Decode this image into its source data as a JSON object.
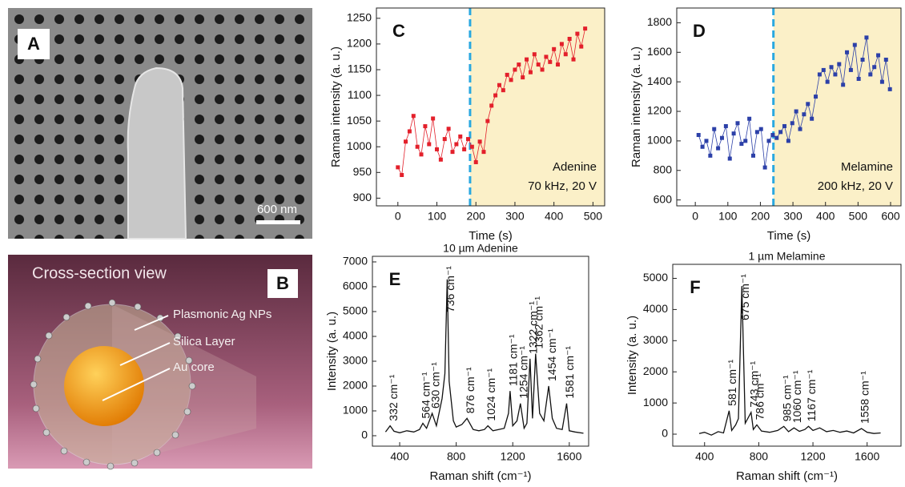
{
  "panels": {
    "A": {
      "label": "A",
      "scale_bar": "600 nm"
    },
    "B": {
      "label": "B",
      "title": "Cross-section view",
      "labels": [
        "Plasmonic Ag NPs",
        "Silica Layer",
        "Au core"
      ]
    }
  },
  "chart_data": [
    {
      "type": "line",
      "panel": "C",
      "markers": true,
      "xlabel": "Time (s)",
      "ylabel": "Raman intensity (a. u.)",
      "annotation_lines": [
        "Adenine",
        "70 kHz, 20 V"
      ],
      "vline": 185,
      "shade_color": "#fbf0c8",
      "vline_color": "#29a8e0",
      "x": [
        0,
        10,
        20,
        30,
        40,
        50,
        60,
        70,
        80,
        90,
        100,
        110,
        120,
        130,
        140,
        150,
        160,
        170,
        180,
        190,
        200,
        210,
        220,
        230,
        240,
        250,
        260,
        270,
        280,
        290,
        300,
        310,
        320,
        330,
        340,
        350,
        360,
        370,
        380,
        390,
        400,
        410,
        420,
        430,
        440,
        450,
        460,
        470,
        480
      ],
      "series": [
        {
          "color": "#e3202b",
          "values": [
            960,
            945,
            1010,
            1030,
            1060,
            1000,
            985,
            1040,
            1005,
            1055,
            995,
            975,
            1015,
            1035,
            990,
            1005,
            1020,
            995,
            1015,
            1000,
            970,
            1010,
            990,
            1050,
            1080,
            1100,
            1120,
            1110,
            1140,
            1130,
            1150,
            1160,
            1135,
            1170,
            1145,
            1180,
            1160,
            1150,
            1175,
            1165,
            1190,
            1160,
            1200,
            1180,
            1210,
            1170,
            1220,
            1195,
            1230
          ]
        }
      ],
      "xlim": [
        -55,
        530
      ],
      "ylim": [
        885,
        1270
      ],
      "xticks": [
        0,
        100,
        200,
        300,
        400,
        500
      ],
      "yticks": [
        900,
        950,
        1000,
        1050,
        1100,
        1150,
        1200,
        1250
      ]
    },
    {
      "type": "line",
      "panel": "D",
      "markers": true,
      "xlabel": "Time (s)",
      "ylabel": "Raman intensity (a. u.)",
      "annotation_lines": [
        "Melamine",
        "200 kHz, 20 V"
      ],
      "vline": 240,
      "shade_color": "#fbf0c8",
      "vline_color": "#29a8e0",
      "x": [
        10,
        22,
        34,
        46,
        58,
        70,
        82,
        94,
        106,
        118,
        130,
        142,
        154,
        166,
        178,
        190,
        202,
        214,
        226,
        238,
        250,
        262,
        274,
        286,
        298,
        310,
        322,
        334,
        346,
        358,
        370,
        382,
        394,
        406,
        418,
        430,
        442,
        454,
        466,
        478,
        490,
        502,
        514,
        526,
        538,
        550,
        562,
        574,
        586,
        598
      ],
      "series": [
        {
          "color": "#2c40a8",
          "values": [
            1040,
            960,
            1000,
            900,
            1080,
            950,
            1020,
            1100,
            880,
            1050,
            1120,
            980,
            1000,
            1150,
            900,
            1060,
            1080,
            820,
            1000,
            1040,
            1020,
            1060,
            1100,
            1000,
            1120,
            1200,
            1080,
            1180,
            1250,
            1150,
            1300,
            1450,
            1480,
            1400,
            1500,
            1450,
            1520,
            1380,
            1600,
            1480,
            1650,
            1420,
            1550,
            1700,
            1450,
            1500,
            1580,
            1400,
            1550,
            1350
          ]
        }
      ],
      "xlim": [
        -57,
        632
      ],
      "ylim": [
        560,
        1900
      ],
      "xticks": [
        0,
        100,
        200,
        300,
        400,
        500,
        600
      ],
      "yticks": [
        600,
        800,
        1000,
        1200,
        1400,
        1600,
        1800
      ]
    },
    {
      "type": "line",
      "panel": "E",
      "markers": false,
      "title": "10 µm Adenine",
      "xlabel": "Raman shift (cm⁻¹)",
      "ylabel": "Intensity (a. u.)",
      "x": [
        300,
        332,
        360,
        400,
        450,
        500,
        540,
        564,
        590,
        630,
        660,
        700,
        720,
        736,
        750,
        780,
        800,
        840,
        876,
        920,
        960,
        1000,
        1024,
        1060,
        1100,
        1140,
        1170,
        1181,
        1200,
        1230,
        1254,
        1280,
        1300,
        1322,
        1340,
        1362,
        1390,
        1420,
        1454,
        1480,
        1510,
        1550,
        1581,
        1600,
        1640,
        1700
      ],
      "series": [
        {
          "color": "#111111",
          "values": [
            150,
            400,
            180,
            120,
            200,
            150,
            250,
            500,
            300,
            900,
            400,
            1500,
            2500,
            6300,
            2200,
            600,
            350,
            450,
            700,
            250,
            200,
            250,
            400,
            200,
            250,
            300,
            900,
            1800,
            400,
            600,
            1300,
            300,
            500,
            3100,
            700,
            3300,
            900,
            600,
            2000,
            700,
            300,
            250,
            1300,
            200,
            150,
            100
          ]
        }
      ],
      "xlim": [
        207,
        1737
      ],
      "ylim": [
        -420,
        7225
      ],
      "xticks": [
        400,
        800,
        1200,
        1600
      ],
      "yticks": [
        0,
        1000,
        2000,
        3000,
        4000,
        5000,
        6000,
        7000
      ],
      "peak_labels": [
        {
          "x": 332,
          "text": "332 cm⁻¹"
        },
        {
          "x": 564,
          "text": "564 cm⁻¹"
        },
        {
          "x": 630,
          "text": "630 cm⁻¹"
        },
        {
          "x": 736,
          "text": "736 cm⁻¹"
        },
        {
          "x": 876,
          "text": "876 cm⁻¹"
        },
        {
          "x": 1024,
          "text": "1024 cm⁻¹"
        },
        {
          "x": 1181,
          "text": "1181 cm⁻¹"
        },
        {
          "x": 1254,
          "text": "1254 cm⁻¹"
        },
        {
          "x": 1322,
          "text": "1322 cm⁻¹"
        },
        {
          "x": 1362,
          "text": "1362 cm⁻¹"
        },
        {
          "x": 1454,
          "text": "1454 cm⁻¹"
        },
        {
          "x": 1581,
          "text": "1581 cm⁻¹"
        }
      ]
    },
    {
      "type": "line",
      "panel": "F",
      "markers": false,
      "title": "1 µm Melamine",
      "xlabel": "Raman shift (cm⁻¹)",
      "ylabel": "Intensity (a. u.)",
      "x": [
        360,
        400,
        450,
        500,
        540,
        581,
        600,
        630,
        650,
        675,
        700,
        743,
        760,
        786,
        820,
        880,
        940,
        985,
        1020,
        1060,
        1100,
        1140,
        1167,
        1200,
        1250,
        1300,
        1350,
        1400,
        1450,
        1500,
        1558,
        1600,
        1650,
        1700
      ],
      "series": [
        {
          "color": "#111111",
          "values": [
            20,
            60,
            -30,
            80,
            40,
            750,
            120,
            300,
            500,
            4750,
            350,
            700,
            150,
            300,
            100,
            60,
            120,
            250,
            80,
            200,
            90,
            150,
            250,
            120,
            200,
            80,
            120,
            60,
            100,
            40,
            180,
            60,
            20,
            40
          ]
        }
      ],
      "xlim": [
        165,
        1850
      ],
      "ylim": [
        -385,
        5450
      ],
      "xticks": [
        400,
        800,
        1200,
        1600
      ],
      "yticks": [
        0,
        1000,
        2000,
        3000,
        4000,
        5000
      ],
      "peak_labels": [
        {
          "x": 581,
          "text": "581 cm⁻¹"
        },
        {
          "x": 675,
          "text": "675 cm⁻¹"
        },
        {
          "x": 743,
          "text": "743 cm⁻¹"
        },
        {
          "x": 786,
          "text": "786 cm⁻¹"
        },
        {
          "x": 985,
          "text": "985 cm⁻¹"
        },
        {
          "x": 1060,
          "text": "1060 cm⁻¹"
        },
        {
          "x": 1167,
          "text": "1167 cm⁻¹"
        },
        {
          "x": 1558,
          "text": "1558 cm⁻¹"
        }
      ]
    }
  ]
}
